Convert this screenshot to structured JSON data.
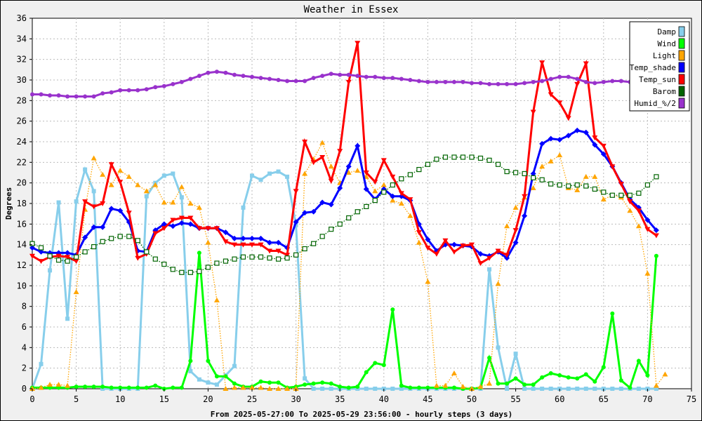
{
  "chart_data": {
    "type": "line",
    "title": "Weather in Essex",
    "xlabel": "From 2025-05-27:00 To 2025-05-29 23:56:00 - hourly steps (3 days)",
    "ylabel": "Degrees",
    "xlim": [
      0,
      75
    ],
    "ylim": [
      0,
      36
    ],
    "xticks": [
      0,
      5,
      10,
      15,
      20,
      25,
      30,
      35,
      40,
      45,
      50,
      55,
      60,
      65,
      70,
      75
    ],
    "yticks": [
      0,
      2,
      4,
      6,
      8,
      10,
      12,
      14,
      16,
      18,
      20,
      22,
      24,
      26,
      28,
      30,
      32,
      34,
      36
    ],
    "grid": true,
    "legend_position": "top-right",
    "series": [
      {
        "name": "Damp",
        "color": "#87ceeb",
        "style": "solid",
        "marker": "square-filled",
        "values": [
          0,
          2.4,
          11.5,
          18.1,
          6.8,
          18.2,
          21.3,
          19.2,
          0,
          0,
          0,
          0,
          0,
          18.7,
          20,
          20.7,
          20.9,
          18.6,
          1.7,
          0.9,
          0.6,
          0.4,
          1.3,
          2.2,
          17.6,
          20.7,
          20.3,
          20.9,
          21.1,
          20.6,
          15.9,
          1,
          0,
          0,
          0,
          0,
          0,
          0,
          0,
          0,
          0,
          0,
          0,
          0,
          0,
          0,
          0,
          0,
          0,
          0,
          0,
          0,
          11.6,
          4,
          0,
          3.4,
          0,
          0,
          0,
          0,
          0,
          0,
          0,
          0,
          0,
          0,
          0,
          0,
          0,
          0,
          0,
          0
        ]
      },
      {
        "name": "Wind",
        "color": "#00ff00",
        "style": "solid",
        "marker": "circle-filled",
        "values": [
          0.1,
          0.1,
          0.1,
          0.1,
          0.1,
          0.2,
          0.2,
          0.2,
          0.2,
          0.1,
          0.1,
          0.1,
          0.1,
          0.1,
          0.3,
          0,
          0.1,
          0.1,
          2.7,
          13.2,
          2.7,
          1.2,
          1.2,
          0.5,
          0.2,
          0.2,
          0.7,
          0.6,
          0.6,
          0.1,
          0.2,
          0.4,
          0.5,
          0.6,
          0.5,
          0.2,
          0.1,
          0.2,
          1.6,
          2.5,
          2.3,
          7.7,
          0.3,
          0.1,
          0.1,
          0.1,
          0.1,
          0.1,
          0.1,
          0,
          0,
          0.1,
          3,
          0.5,
          0.5,
          1,
          0.4,
          0.4,
          1.1,
          1.5,
          1.3,
          1.1,
          1,
          1.4,
          0.7,
          2.1,
          7.3,
          0.8,
          0.1,
          2.7,
          1.3,
          12.9
        ]
      },
      {
        "name": "Light",
        "color": "#ffa500",
        "style": "dotted",
        "marker": "triangle-up",
        "values": [
          0,
          0.1,
          0.4,
          0.4,
          0.3,
          9.4,
          17.4,
          22.4,
          20.8,
          19.8,
          21.2,
          20.6,
          19.8,
          19.2,
          19.8,
          18.1,
          18.1,
          19.6,
          18,
          17.6,
          14.2,
          8.6,
          0,
          0.1,
          0.1,
          0.1,
          0.1,
          0,
          0,
          0,
          0,
          20.9,
          22.3,
          23.9,
          21.6,
          20,
          21,
          21.2,
          20.6,
          19.2,
          19.8,
          18.3,
          18,
          16.8,
          14.2,
          10.4,
          0.3,
          0.3,
          1.5,
          0.2,
          0,
          0.2,
          0.5,
          10.2,
          15.8,
          17.6,
          18.6,
          19.5,
          21.6,
          22.1,
          22.7,
          19.5,
          19.3,
          20.6,
          20.6,
          18.4,
          18.8,
          18.6,
          17.3,
          15.8,
          11.2,
          0.3,
          1.4
        ]
      },
      {
        "name": "Temp_shade",
        "color": "#0000ff",
        "style": "solid",
        "marker": "diamond-filled",
        "values": [
          13.7,
          13.3,
          13.2,
          13.2,
          13.2,
          13,
          14.7,
          15.7,
          15.7,
          17.5,
          17.3,
          16.2,
          13.4,
          13.3,
          15.4,
          16,
          15.8,
          16.1,
          16,
          15.6,
          15.6,
          15.6,
          15.2,
          14.6,
          14.6,
          14.6,
          14.6,
          14.2,
          14.2,
          13.7,
          16.2,
          17.1,
          17.2,
          18.1,
          17.9,
          19.5,
          21.6,
          23.6,
          19.4,
          18.4,
          19.4,
          18.7,
          18.7,
          18.3,
          16,
          14.5,
          13.4,
          14,
          14,
          13.9,
          13.8,
          13.1,
          12.9,
          13.3,
          12.7,
          14.2,
          16.8,
          20.9,
          23.8,
          24.3,
          24.2,
          24.6,
          25.1,
          24.9,
          23.7,
          22.8,
          21.6,
          20,
          18.4,
          17.6,
          16.4,
          15.4
        ]
      },
      {
        "name": "Temp_sun",
        "color": "#ff0000",
        "style": "solid",
        "marker": "triangle-down",
        "values": [
          12.9,
          12.4,
          12.8,
          12.9,
          12.8,
          12.4,
          18.2,
          17.7,
          18,
          21.8,
          20.1,
          17.1,
          12.7,
          13.1,
          15.1,
          15.6,
          16.4,
          16.6,
          16.6,
          15.6,
          15.6,
          15.6,
          14.3,
          14,
          14,
          14,
          14,
          13.4,
          13.4,
          13,
          19.2,
          24,
          22,
          22.5,
          20.2,
          23.1,
          29.8,
          33.6,
          21,
          20.1,
          22.2,
          20.6,
          19,
          18.4,
          15.2,
          13.7,
          13.1,
          14.4,
          13.3,
          13.9,
          14,
          12.2,
          12.7,
          13.4,
          13,
          15.4,
          18.7,
          26.9,
          31.7,
          28.6,
          27.8,
          26.3,
          29.6,
          31.6,
          24.4,
          23.6,
          21.6,
          19.9,
          18.2,
          17.3,
          15.5,
          14.9
        ]
      },
      {
        "name": "Barom",
        "color": "#006400",
        "style": "dotted",
        "marker": "square-open",
        "values": [
          14.1,
          13.7,
          12.9,
          12.5,
          12.4,
          12.8,
          13.3,
          13.8,
          14.3,
          14.6,
          14.8,
          14.8,
          14.4,
          13.3,
          12.6,
          12.1,
          11.6,
          11.3,
          11.3,
          11.4,
          11.8,
          12.2,
          12.4,
          12.6,
          12.8,
          12.8,
          12.8,
          12.7,
          12.6,
          12.7,
          13,
          13.6,
          14.1,
          14.8,
          15.5,
          16,
          16.6,
          17.2,
          17.7,
          18.3,
          19.1,
          19.8,
          20.4,
          20.8,
          21.3,
          21.8,
          22.3,
          22.5,
          22.5,
          22.5,
          22.5,
          22.4,
          22.2,
          21.8,
          21.1,
          21,
          20.9,
          20.5,
          20.3,
          19.9,
          19.8,
          19.7,
          19.8,
          19.7,
          19.4,
          19.1,
          18.8,
          18.8,
          18.8,
          19,
          19.8,
          20.6
        ]
      },
      {
        "name": "Humid_%/2",
        "color": "#9932cc",
        "style": "solid",
        "marker": "circle-filled",
        "values": [
          28.6,
          28.6,
          28.5,
          28.5,
          28.4,
          28.4,
          28.4,
          28.4,
          28.7,
          28.8,
          29,
          29,
          29,
          29.1,
          29.3,
          29.4,
          29.6,
          29.8,
          30.1,
          30.4,
          30.7,
          30.8,
          30.7,
          30.5,
          30.4,
          30.3,
          30.2,
          30.1,
          30,
          29.9,
          29.9,
          29.9,
          30.2,
          30.4,
          30.6,
          30.5,
          30.5,
          30.4,
          30.3,
          30.3,
          30.2,
          30.2,
          30.1,
          30,
          29.9,
          29.8,
          29.8,
          29.8,
          29.8,
          29.8,
          29.7,
          29.7,
          29.6,
          29.6,
          29.6,
          29.6,
          29.7,
          29.8,
          29.9,
          30.1,
          30.3,
          30.3,
          30.1,
          29.8,
          29.7,
          29.8,
          29.9,
          29.9,
          29.8,
          29.8,
          29.8,
          29.8
        ]
      }
    ]
  }
}
